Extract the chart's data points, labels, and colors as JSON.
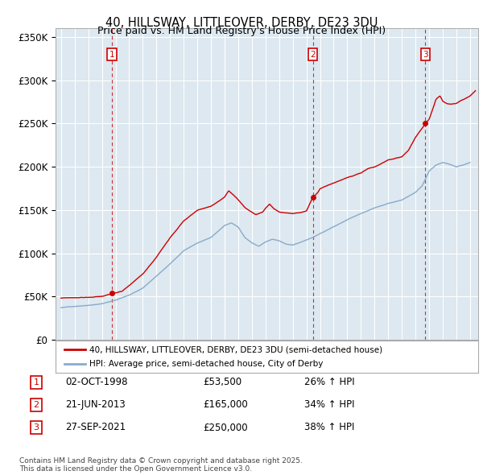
{
  "title": "40, HILLSWAY, LITTLEOVER, DERBY, DE23 3DU",
  "subtitle": "Price paid vs. HM Land Registry's House Price Index (HPI)",
  "ylim": [
    0,
    360000
  ],
  "yticks": [
    0,
    50000,
    100000,
    150000,
    200000,
    250000,
    300000,
    350000
  ],
  "ytick_labels": [
    "£0",
    "£50K",
    "£100K",
    "£150K",
    "£200K",
    "£250K",
    "£300K",
    "£350K"
  ],
  "xlim_start": 1994.6,
  "xlim_end": 2025.6,
  "sales": [
    {
      "year": 1998.75,
      "price": 53500,
      "label": "1"
    },
    {
      "year": 2013.47,
      "price": 165000,
      "label": "2"
    },
    {
      "year": 2021.73,
      "price": 250000,
      "label": "3"
    }
  ],
  "sale_dates": [
    "02-OCT-1998",
    "21-JUN-2013",
    "27-SEP-2021"
  ],
  "sale_prices": [
    "£53,500",
    "£165,000",
    "£250,000"
  ],
  "sale_hpi": [
    "26% ↑ HPI",
    "34% ↑ HPI",
    "38% ↑ HPI"
  ],
  "red_color": "#cc0000",
  "blue_color": "#88aacc",
  "plot_bg_color": "#dde8f0",
  "legend_line1": "40, HILLSWAY, LITTLEOVER, DERBY, DE23 3DU (semi-detached house)",
  "legend_line2": "HPI: Average price, semi-detached house, City of Derby",
  "footnote": "Contains HM Land Registry data © Crown copyright and database right 2025.\nThis data is licensed under the Open Government Licence v3.0.",
  "background_color": "#ffffff",
  "grid_color": "#ffffff"
}
